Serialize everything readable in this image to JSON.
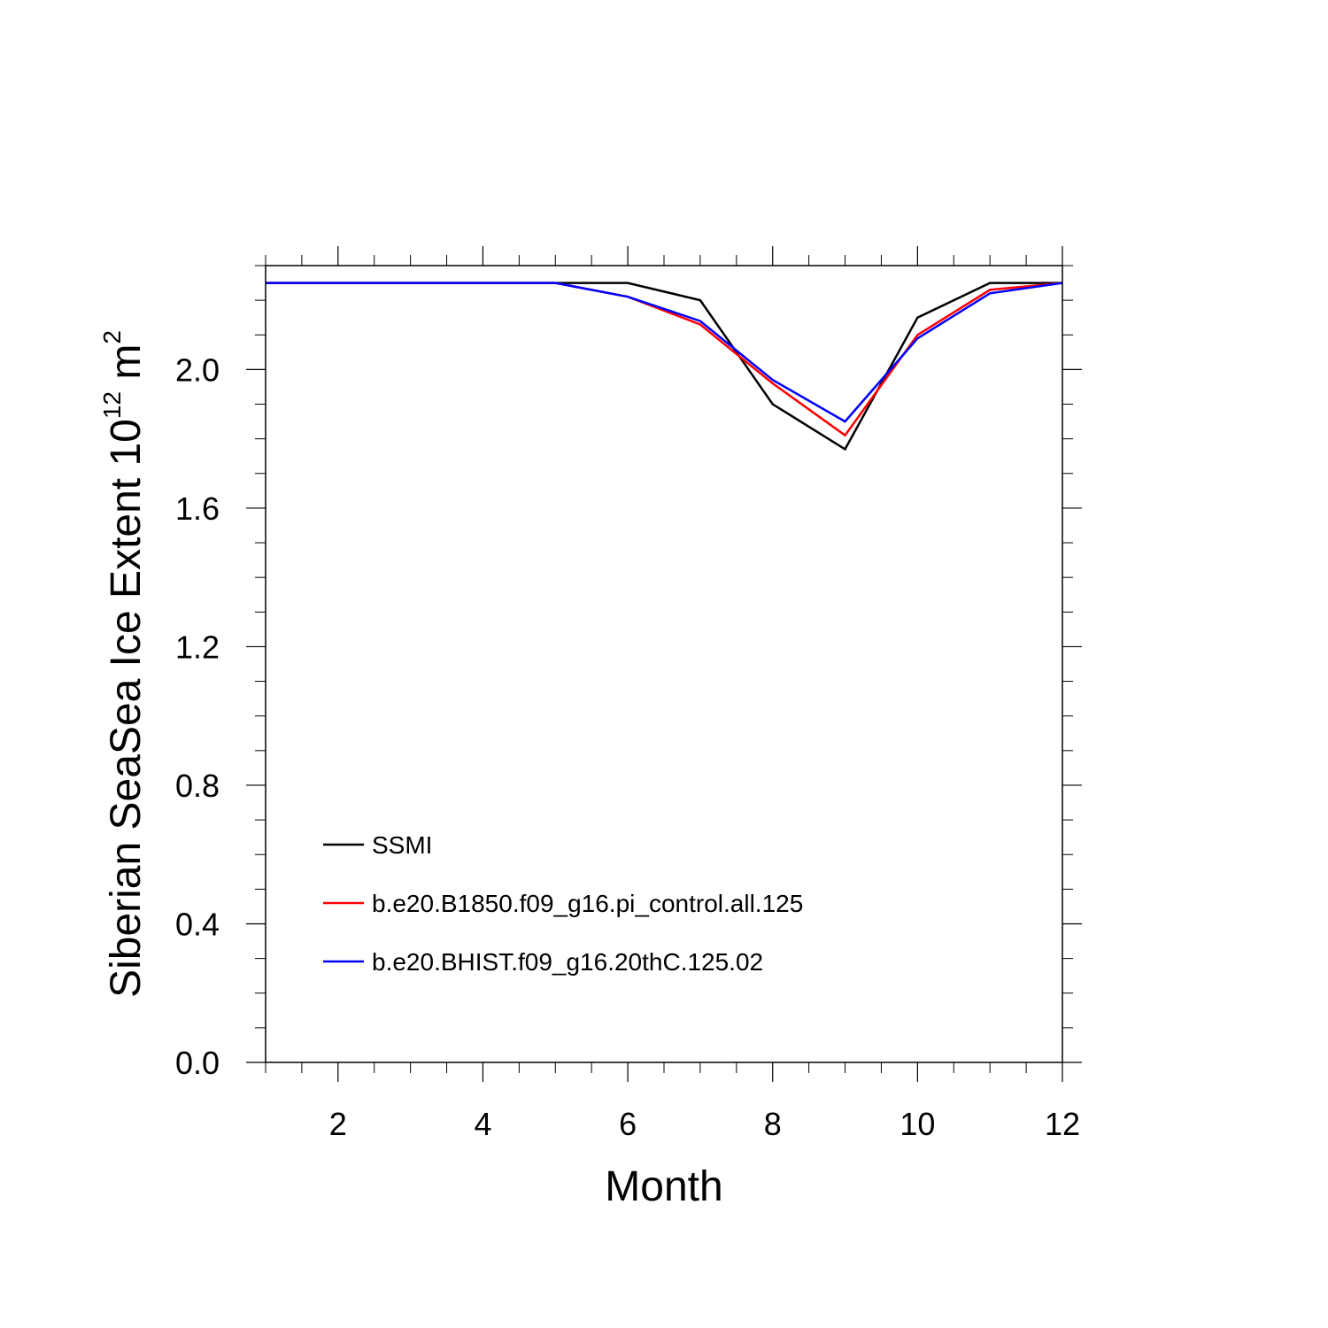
{
  "chart_data": {
    "type": "line",
    "xlabel": "Month",
    "ylabel": {
      "main": "Siberian SeaSea Ice Extent 10",
      "sup1": "12",
      "unit": " m",
      "sup2": "2"
    },
    "xlim": [
      1,
      12
    ],
    "ylim": [
      0,
      2.3
    ],
    "x_ticks": [
      2,
      4,
      6,
      8,
      10,
      12
    ],
    "x_tick_labels": [
      "2",
      "4",
      "6",
      "8",
      "10",
      "12"
    ],
    "y_ticks": [
      0,
      0.4,
      0.8,
      1.2,
      1.6,
      2.0
    ],
    "y_tick_labels": [
      "0.0",
      "0.4",
      "0.8",
      "1.2",
      "1.6",
      "2.0"
    ],
    "x_minor_step": 0.5,
    "y_minor_step": 0.1,
    "grid": false,
    "legend_position": "bottom-left",
    "x": [
      1,
      2,
      3,
      4,
      5,
      6,
      7,
      8,
      9,
      10,
      11,
      12
    ],
    "series": [
      {
        "name": "SSMI",
        "color": "#000000",
        "values": [
          2.25,
          2.25,
          2.25,
          2.25,
          2.25,
          2.25,
          2.2,
          1.9,
          1.77,
          2.15,
          2.25,
          2.25
        ]
      },
      {
        "name": "b.e20.B1850.f09_g16.pi_control.all.125",
        "color": "#ff0000",
        "values": [
          2.25,
          2.25,
          2.25,
          2.25,
          2.25,
          2.21,
          2.13,
          1.96,
          1.81,
          2.1,
          2.23,
          2.25
        ]
      },
      {
        "name": "b.e20.BHIST.f09_g16.20thC.125.02",
        "color": "#0000ff",
        "values": [
          2.25,
          2.25,
          2.25,
          2.25,
          2.25,
          2.21,
          2.14,
          1.97,
          1.85,
          2.09,
          2.22,
          2.25
        ]
      }
    ]
  }
}
